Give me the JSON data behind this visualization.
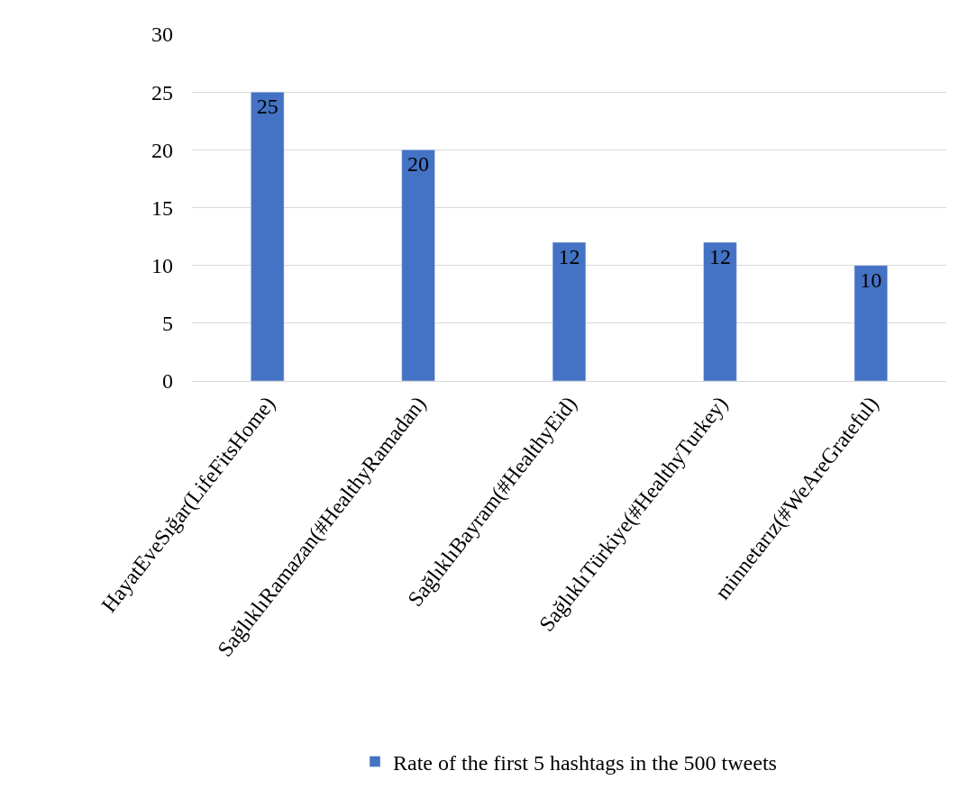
{
  "chart_data": {
    "type": "bar",
    "categories": [
      "HayatEveSığar(LifeFitsHome)",
      "SağlıklıRamazan(#HealthyRamadan)",
      "SağlıklıBayram(#HealthyEid)",
      "SağlıklıTürkiye(#HealthyTurkey)",
      "minnetarız(#WeAreGrateful)"
    ],
    "series": [
      {
        "name": "Rate of the first 5 hashtags in the 500 tweets",
        "color": "#4472c4",
        "values": [
          25,
          20,
          12,
          12,
          10
        ]
      }
    ],
    "ylim": [
      0,
      30
    ],
    "yticks": [
      0,
      5,
      10,
      15,
      20,
      25,
      30
    ],
    "grid": "y",
    "legend": "bottom",
    "data_labels": true
  }
}
